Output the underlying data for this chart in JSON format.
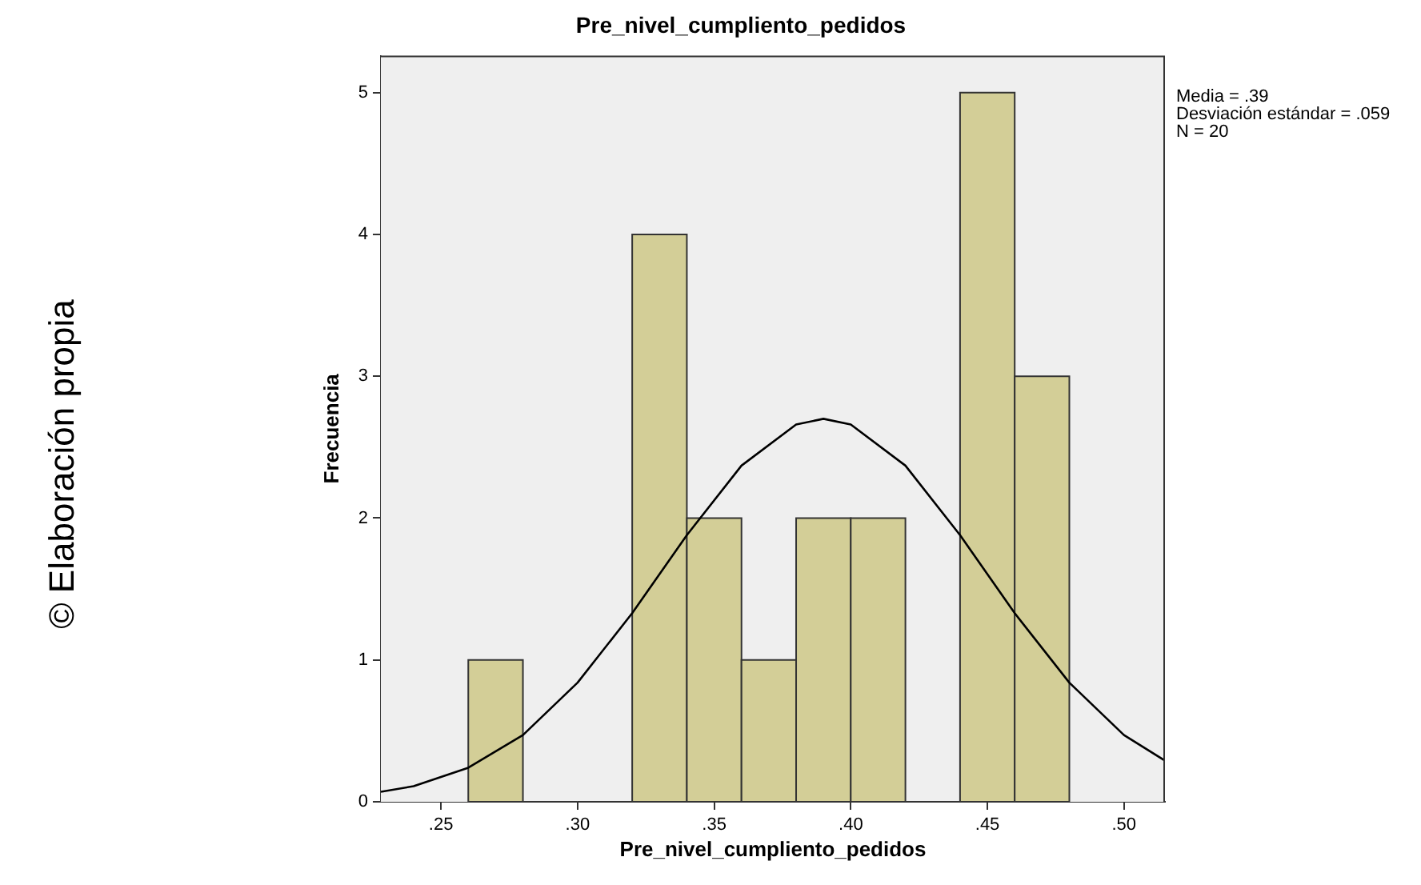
{
  "chart_data": {
    "type": "histogram",
    "title": "Pre_nivel_cumpliento_pedidos",
    "xlabel": "Pre_nivel_cumpliento_pedidos",
    "ylabel": "Frecuencia",
    "bins": [
      0.26,
      0.28,
      0.3,
      0.32,
      0.34,
      0.36,
      0.38,
      0.4,
      0.42,
      0.44,
      0.46,
      0.48
    ],
    "values": [
      1,
      0,
      0,
      4,
      2,
      1,
      2,
      2,
      0,
      5,
      3
    ],
    "color": "#d3ce97",
    "series": [
      {
        "type": "line",
        "color": "#000000",
        "x": [
          0.228,
          0.24,
          0.26,
          0.28,
          0.3,
          0.32,
          0.34,
          0.36,
          0.38,
          0.39,
          0.4,
          0.42,
          0.44,
          0.46,
          0.48,
          0.5,
          0.515
        ],
        "values": [
          0.07,
          0.11,
          0.24,
          0.47,
          0.84,
          1.33,
          1.88,
          2.37,
          2.66,
          2.7,
          2.66,
          2.37,
          1.88,
          1.33,
          0.84,
          0.47,
          0.29
        ]
      }
    ],
    "xlim": [
      0.228,
      0.515
    ],
    "xticks": [
      {
        "value": 0.25,
        "label": ".25"
      },
      {
        "value": 0.3,
        "label": ".30"
      },
      {
        "value": 0.35,
        "label": ".35"
      },
      {
        "value": 0.4,
        "label": ".40"
      },
      {
        "value": 0.45,
        "label": ".45"
      },
      {
        "value": 0.5,
        "label": ".50"
      }
    ],
    "ylim": [
      0,
      5.26
    ],
    "yticks": [
      0,
      1,
      2,
      3,
      4,
      5
    ],
    "grid": false,
    "legend": false,
    "annotations": [
      "Media = .39",
      "Desviación estándar = .059",
      "N = 20",
      "© Elaboración propia"
    ]
  }
}
